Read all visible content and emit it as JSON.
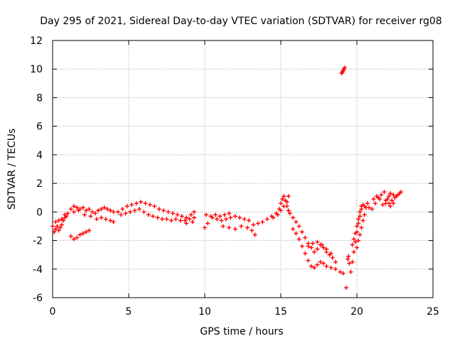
{
  "chart_data": {
    "type": "scatter",
    "title": "Day 295 of 2021, Sidereal Day-to-day VTEC variation (SDTVAR) for receiver rg08",
    "xlabel": "GPS time / hours",
    "ylabel": "SDTVAR / TECUs",
    "xlim": [
      0,
      25
    ],
    "ylim": [
      -6,
      12
    ],
    "xticks": [
      "0",
      "5",
      "10",
      "15",
      "20",
      "25"
    ],
    "yticks": [
      "-6",
      "-4",
      "-2",
      "0",
      "2",
      "4",
      "6",
      "8",
      "10",
      "12"
    ],
    "grid": true,
    "marker": "+",
    "colors": {
      "points": "#ff0000",
      "grid": "#a0a0a0",
      "axes": "#000000"
    },
    "series": [
      {
        "name": "rg08",
        "points": [
          [
            0.0,
            -1.0
          ],
          [
            0.1,
            -1.4
          ],
          [
            0.2,
            -1.2
          ],
          [
            0.3,
            -1.0
          ],
          [
            0.4,
            -1.3
          ],
          [
            0.5,
            -1.1
          ],
          [
            0.6,
            -0.9
          ],
          [
            0.7,
            -0.6
          ],
          [
            0.8,
            -0.4
          ],
          [
            0.9,
            -0.3
          ],
          [
            1.0,
            -0.1
          ],
          [
            0.2,
            -0.7
          ],
          [
            0.4,
            -0.6
          ],
          [
            0.6,
            -0.5
          ],
          [
            0.8,
            -0.2
          ],
          [
            1.2,
            0.2
          ],
          [
            1.4,
            0.4
          ],
          [
            1.6,
            0.3
          ],
          [
            1.8,
            0.2
          ],
          [
            2.0,
            0.3
          ],
          [
            2.2,
            0.1
          ],
          [
            2.4,
            0.2
          ],
          [
            2.6,
            0.0
          ],
          [
            2.8,
            -0.1
          ],
          [
            3.0,
            0.1
          ],
          [
            3.2,
            0.2
          ],
          [
            3.4,
            0.3
          ],
          [
            3.6,
            0.2
          ],
          [
            3.8,
            0.1
          ],
          [
            4.0,
            0.0
          ],
          [
            1.4,
            0.0
          ],
          [
            1.7,
            0.1
          ],
          [
            2.1,
            -0.2
          ],
          [
            2.5,
            -0.3
          ],
          [
            2.9,
            -0.5
          ],
          [
            3.2,
            -0.4
          ],
          [
            3.5,
            -0.5
          ],
          [
            3.8,
            -0.6
          ],
          [
            4.0,
            -0.7
          ],
          [
            1.2,
            -1.7
          ],
          [
            1.4,
            -1.9
          ],
          [
            1.6,
            -1.8
          ],
          [
            1.8,
            -1.6
          ],
          [
            2.0,
            -1.5
          ],
          [
            2.2,
            -1.4
          ],
          [
            2.4,
            -1.3
          ],
          [
            4.3,
            0.0
          ],
          [
            4.6,
            0.2
          ],
          [
            4.9,
            0.4
          ],
          [
            5.2,
            0.5
          ],
          [
            5.5,
            0.6
          ],
          [
            5.8,
            0.7
          ],
          [
            6.1,
            0.6
          ],
          [
            6.4,
            0.5
          ],
          [
            6.7,
            0.4
          ],
          [
            7.0,
            0.2
          ],
          [
            7.3,
            0.1
          ],
          [
            7.6,
            0.0
          ],
          [
            7.9,
            -0.1
          ],
          [
            4.5,
            -0.2
          ],
          [
            4.8,
            -0.1
          ],
          [
            5.1,
            0.0
          ],
          [
            5.4,
            0.1
          ],
          [
            5.7,
            0.2
          ],
          [
            6.0,
            0.0
          ],
          [
            6.3,
            -0.2
          ],
          [
            6.6,
            -0.3
          ],
          [
            6.9,
            -0.4
          ],
          [
            7.2,
            -0.5
          ],
          [
            7.5,
            -0.5
          ],
          [
            7.8,
            -0.6
          ],
          [
            8.1,
            -0.5
          ],
          [
            8.4,
            -0.6
          ],
          [
            8.7,
            -0.6
          ],
          [
            9.0,
            -0.5
          ],
          [
            9.3,
            -0.4
          ],
          [
            8.2,
            -0.2
          ],
          [
            8.5,
            -0.3
          ],
          [
            8.8,
            -0.4
          ],
          [
            9.1,
            -0.2
          ],
          [
            9.3,
            0.0
          ],
          [
            8.8,
            -0.8
          ],
          [
            9.2,
            -0.7
          ],
          [
            10.0,
            -1.1
          ],
          [
            10.2,
            -0.8
          ],
          [
            10.5,
            -0.4
          ],
          [
            10.8,
            -0.5
          ],
          [
            11.1,
            -0.6
          ],
          [
            11.4,
            -0.5
          ],
          [
            11.7,
            -0.4
          ],
          [
            12.0,
            -0.3
          ],
          [
            12.3,
            -0.4
          ],
          [
            12.6,
            -0.5
          ],
          [
            12.9,
            -0.6
          ],
          [
            10.1,
            -0.2
          ],
          [
            10.4,
            -0.3
          ],
          [
            10.7,
            -0.2
          ],
          [
            11.0,
            -0.3
          ],
          [
            11.3,
            -0.2
          ],
          [
            11.6,
            -0.1
          ],
          [
            11.2,
            -1.0
          ],
          [
            11.6,
            -1.1
          ],
          [
            12.0,
            -1.2
          ],
          [
            12.4,
            -1.0
          ],
          [
            12.8,
            -1.1
          ],
          [
            13.1,
            -1.3
          ],
          [
            13.3,
            -1.6
          ],
          [
            13.2,
            -0.9
          ],
          [
            13.5,
            -0.8
          ],
          [
            13.8,
            -0.7
          ],
          [
            14.1,
            -0.5
          ],
          [
            14.4,
            -0.3
          ],
          [
            14.7,
            -0.1
          ],
          [
            14.9,
            0.2
          ],
          [
            15.0,
            0.6
          ],
          [
            15.1,
            0.9
          ],
          [
            15.2,
            1.1
          ],
          [
            15.3,
            0.8
          ],
          [
            15.4,
            0.4
          ],
          [
            15.5,
            0.1
          ],
          [
            14.5,
            -0.4
          ],
          [
            14.8,
            -0.2
          ],
          [
            15.0,
            0.1
          ],
          [
            15.2,
            0.4
          ],
          [
            15.4,
            0.7
          ],
          [
            15.5,
            1.1
          ],
          [
            15.6,
            -0.1
          ],
          [
            15.8,
            -0.4
          ],
          [
            16.0,
            -0.7
          ],
          [
            16.2,
            -1.0
          ],
          [
            16.4,
            -1.4
          ],
          [
            16.6,
            -1.8
          ],
          [
            16.8,
            -2.2
          ],
          [
            17.0,
            -2.5
          ],
          [
            17.2,
            -2.8
          ],
          [
            17.4,
            -2.6
          ],
          [
            17.6,
            -2.3
          ],
          [
            17.8,
            -2.5
          ],
          [
            18.0,
            -2.8
          ],
          [
            18.2,
            -3.0
          ],
          [
            18.4,
            -3.2
          ],
          [
            18.6,
            -3.5
          ],
          [
            15.8,
            -1.2
          ],
          [
            16.0,
            -1.5
          ],
          [
            16.2,
            -1.9
          ],
          [
            16.4,
            -2.4
          ],
          [
            16.6,
            -2.9
          ],
          [
            16.8,
            -3.4
          ],
          [
            17.0,
            -3.8
          ],
          [
            17.2,
            -3.9
          ],
          [
            17.4,
            -3.7
          ],
          [
            17.6,
            -3.5
          ],
          [
            17.8,
            -3.6
          ],
          [
            18.0,
            -3.8
          ],
          [
            18.3,
            -3.9
          ],
          [
            18.6,
            -4.0
          ],
          [
            18.9,
            -4.2
          ],
          [
            19.1,
            -4.3
          ],
          [
            16.8,
            -2.4
          ],
          [
            17.1,
            -2.2
          ],
          [
            17.4,
            -2.1
          ],
          [
            17.7,
            -2.3
          ],
          [
            18.0,
            -2.6
          ],
          [
            18.3,
            -2.9
          ],
          [
            19.0,
            9.7
          ],
          [
            19.1,
            9.9
          ],
          [
            19.2,
            10.1
          ],
          [
            19.05,
            9.8
          ],
          [
            19.15,
            10.0
          ],
          [
            19.3,
            -5.3
          ],
          [
            19.4,
            -3.3
          ],
          [
            19.5,
            -3.6
          ],
          [
            19.45,
            -3.1
          ],
          [
            19.6,
            -4.2
          ],
          [
            19.7,
            -3.5
          ],
          [
            19.8,
            -2.8
          ],
          [
            19.9,
            -2.1
          ],
          [
            20.0,
            -1.4
          ],
          [
            20.1,
            -0.8
          ],
          [
            20.2,
            -0.3
          ],
          [
            20.3,
            0.2
          ],
          [
            20.4,
            0.5
          ],
          [
            20.5,
            0.4
          ],
          [
            19.7,
            -2.3
          ],
          [
            19.8,
            -1.9
          ],
          [
            19.9,
            -1.5
          ],
          [
            20.0,
            -1.0
          ],
          [
            20.1,
            -0.5
          ],
          [
            20.2,
            0.0
          ],
          [
            20.3,
            0.4
          ],
          [
            20.0,
            -2.5
          ],
          [
            20.1,
            -2.0
          ],
          [
            20.2,
            -1.6
          ],
          [
            20.3,
            -1.1
          ],
          [
            20.4,
            -0.6
          ],
          [
            20.5,
            -0.2
          ],
          [
            20.6,
            0.3
          ],
          [
            20.7,
            0.6
          ],
          [
            20.8,
            0.3
          ],
          [
            21.0,
            0.2
          ],
          [
            21.2,
            0.6
          ],
          [
            21.4,
            1.0
          ],
          [
            21.6,
            1.2
          ],
          [
            21.8,
            1.4
          ],
          [
            21.1,
            0.9
          ],
          [
            21.3,
            1.1
          ],
          [
            21.5,
            0.9
          ],
          [
            21.9,
            0.6
          ],
          [
            22.0,
            0.9
          ],
          [
            22.1,
            1.1
          ],
          [
            22.2,
            1.3
          ],
          [
            22.4,
            1.2
          ],
          [
            22.6,
            1.1
          ],
          [
            22.8,
            1.3
          ],
          [
            21.7,
            0.5
          ],
          [
            21.9,
            0.8
          ],
          [
            22.1,
            0.6
          ],
          [
            22.3,
            0.8
          ],
          [
            22.5,
            1.0
          ],
          [
            22.7,
            1.2
          ],
          [
            22.9,
            1.4
          ],
          [
            22.2,
            0.4
          ],
          [
            22.4,
            0.6
          ]
        ]
      }
    ]
  }
}
